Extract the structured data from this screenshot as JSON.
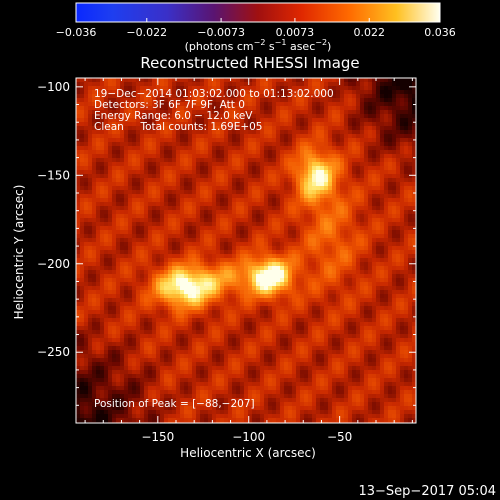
{
  "chart_data": {
    "type": "heatmap",
    "title": "Reconstructed RHESSI Image",
    "xlabel": "Heliocentric X (arcsec)",
    "ylabel": "Heliocentric Y (arcsec)",
    "xlim": [
      -195,
      -8
    ],
    "ylim": [
      -290,
      -95
    ],
    "x_ticks": [
      -150,
      -100,
      -50
    ],
    "y_ticks": [
      -100,
      -150,
      -200,
      -250
    ],
    "x_tick_labels": [
      "−150",
      "−100",
      "−50"
    ],
    "y_tick_labels": [
      "−100",
      "−150",
      "−200",
      "−250"
    ],
    "colorbar": {
      "min": -0.036,
      "max": 0.036,
      "ticks": [
        -0.036,
        -0.022,
        -0.0073,
        0.0073,
        0.022,
        0.036
      ],
      "tick_labels": [
        "−0.036",
        "−0.022",
        "−0.0073",
        "0.0073",
        "0.022",
        "0.036"
      ],
      "unit_main": "(photons cm",
      "unit_exp1": "−2",
      "unit_mid": " s",
      "unit_exp2": "−1",
      "unit_end": " asec",
      "unit_exp3": "−2",
      "unit_close": ")"
    },
    "annotations": [
      "19−Dec−2014 01:03:02.000 to 01:13:02.000",
      "Detectors: 3F 6F 7F 9F, Att 0",
      "Energy Range: 6.0 − 12.0 keV",
      "Clean     Total counts: 1.69E+05"
    ],
    "peak_label": "Position of Peak = [−88,−207]",
    "peak": [
      -88,
      -207
    ],
    "sources": [
      {
        "x": -135,
        "y": -214,
        "peak": 0.036
      },
      {
        "x": -88,
        "y": -207,
        "peak": 0.036
      },
      {
        "x": -63,
        "y": -150,
        "peak": 0.034
      }
    ],
    "timestamp": "13−Sep−2017 05:04"
  }
}
